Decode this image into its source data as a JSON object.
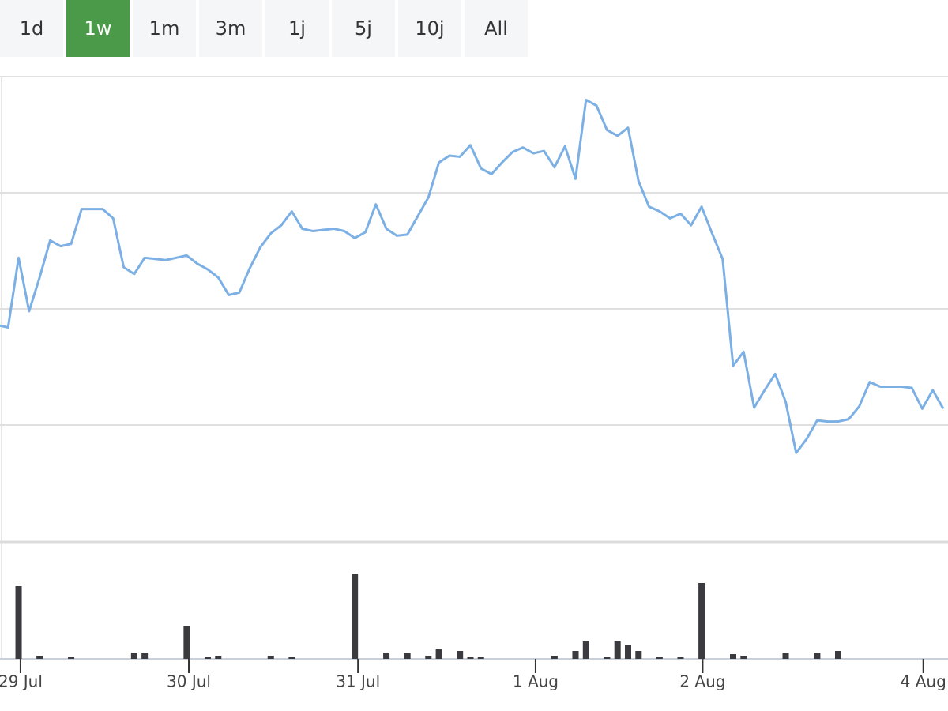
{
  "range_buttons": {
    "labels": [
      "1d",
      "1w",
      "1m",
      "3m",
      "1j",
      "5j",
      "10j",
      "All"
    ],
    "selected": 1
  },
  "chart_data": [
    {
      "type": "line",
      "color": "#7cb0e4",
      "grid": true,
      "x": [
        0,
        1,
        2,
        3,
        4,
        5,
        6,
        7,
        8,
        9,
        10,
        11,
        12,
        13,
        14,
        15,
        16,
        17,
        18,
        19,
        20,
        21,
        22,
        23,
        24,
        25,
        26,
        27,
        28,
        29,
        30,
        31,
        32,
        33,
        34,
        35,
        36,
        37,
        38,
        39,
        40,
        41,
        42,
        43,
        44,
        45,
        46,
        47,
        48,
        49,
        50,
        51,
        52,
        53,
        54,
        55,
        56,
        57,
        58,
        59,
        60,
        61,
        62,
        63,
        64,
        65,
        66,
        67,
        68,
        69,
        70,
        71,
        72,
        73,
        74,
        75,
        76,
        77,
        78,
        79,
        80,
        81,
        82,
        83,
        84,
        85,
        86,
        87,
        88,
        89,
        90
      ],
      "values": [
        1.86,
        1.84,
        2.44,
        1.98,
        2.27,
        2.59,
        2.54,
        2.56,
        2.86,
        2.86,
        2.86,
        2.78,
        2.36,
        2.3,
        2.44,
        2.43,
        2.42,
        2.44,
        2.46,
        2.39,
        2.34,
        2.27,
        2.12,
        2.14,
        2.35,
        2.53,
        2.65,
        2.72,
        2.84,
        2.69,
        2.67,
        2.68,
        2.69,
        2.67,
        2.61,
        2.66,
        2.9,
        2.69,
        2.63,
        2.64,
        2.8,
        2.96,
        3.26,
        3.32,
        3.31,
        3.41,
        3.21,
        3.16,
        3.26,
        3.35,
        3.39,
        3.34,
        3.36,
        3.22,
        3.4,
        3.12,
        3.8,
        3.75,
        3.54,
        3.49,
        3.56,
        3.1,
        2.88,
        2.84,
        2.78,
        2.82,
        2.72,
        2.88,
        2.65,
        2.43,
        1.51,
        1.63,
        1.15,
        1.3,
        1.44,
        1.2,
        0.76,
        0.88,
        1.04,
        1.03,
        1.03,
        1.05,
        1.16,
        1.37,
        1.33,
        1.33,
        1.33,
        1.32,
        1.14,
        1.3,
        1.14
      ],
      "xlim": [
        0.23,
        90.45
      ],
      "ylim": [
        0,
        4
      ],
      "yticks": [
        1,
        2,
        3,
        4
      ]
    },
    {
      "type": "bar",
      "color": "#3a3a3f",
      "x": [
        2,
        4,
        7,
        13,
        14,
        18,
        20,
        21,
        26,
        28,
        34,
        37,
        39,
        41,
        42,
        44,
        45,
        46,
        53,
        55,
        56,
        58,
        59,
        60,
        61,
        63,
        65,
        67,
        70,
        71,
        75,
        78,
        80
      ],
      "values": [
        92,
        4,
        2,
        8,
        8,
        42,
        2,
        4,
        4,
        2,
        108,
        8,
        8,
        4,
        12,
        10,
        2,
        2,
        4,
        10,
        22,
        2,
        22,
        18,
        10,
        2,
        2,
        96,
        6,
        4,
        8,
        8,
        10
      ],
      "xlim": [
        0.23,
        90.45
      ],
      "ylim": [
        0,
        144
      ],
      "xticks": [
        {
          "value": 2.18,
          "label": "29 Jul"
        },
        {
          "value": 18.2,
          "label": "30 Jul"
        },
        {
          "value": 34.3,
          "label": "31 Jul"
        },
        {
          "value": 51.2,
          "label": "1 Aug"
        },
        {
          "value": 67.1,
          "label": "2 Aug"
        },
        {
          "value": 88.1,
          "label": "4 Aug"
        }
      ]
    }
  ]
}
